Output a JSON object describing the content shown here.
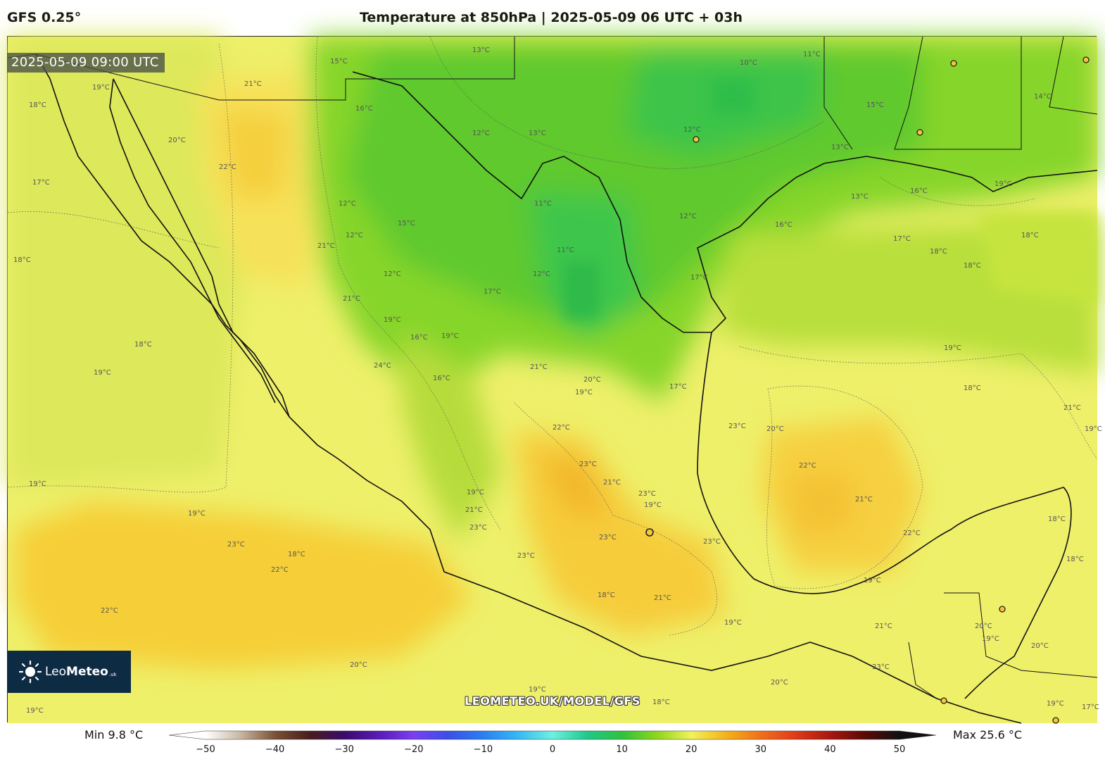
{
  "header": {
    "model": "GFS 0.25°",
    "title": "Temperature at 850hPa | 2025-05-09 06 UTC + 03h"
  },
  "map": {
    "valid_time": "2025-05-09 09:00 UTC",
    "watermark": "LEOMETEO.UK/MODEL/GFS",
    "contour_labels": [
      {
        "id": "c1",
        "text": "15°C"
      },
      {
        "id": "c2",
        "text": "13°C"
      },
      {
        "id": "c3",
        "text": "11°C"
      },
      {
        "id": "c4",
        "text": "10°C"
      },
      {
        "id": "c5",
        "text": "12°C"
      },
      {
        "id": "c6",
        "text": "15°C"
      },
      {
        "id": "c7",
        "text": "13°C"
      },
      {
        "id": "c8",
        "text": "14°C"
      },
      {
        "id": "c9",
        "text": "21°C"
      },
      {
        "id": "c10",
        "text": "16°C"
      },
      {
        "id": "c11",
        "text": "12°C"
      },
      {
        "id": "c12",
        "text": "13°C"
      },
      {
        "id": "c13",
        "text": "22°C"
      },
      {
        "id": "c14",
        "text": "19°C"
      },
      {
        "id": "c15",
        "text": "18°C"
      },
      {
        "id": "c16",
        "text": "20°C"
      },
      {
        "id": "c17",
        "text": "17°C"
      },
      {
        "id": "c18",
        "text": "12°C"
      },
      {
        "id": "c19",
        "text": "12°C"
      },
      {
        "id": "c20",
        "text": "15°C"
      },
      {
        "id": "c21",
        "text": "11°C"
      },
      {
        "id": "c22",
        "text": "11°C"
      },
      {
        "id": "c23",
        "text": "12°C"
      },
      {
        "id": "c24",
        "text": "12°C"
      },
      {
        "id": "c25",
        "text": "13°C"
      },
      {
        "id": "c26",
        "text": "16°C"
      },
      {
        "id": "c27",
        "text": "16°C"
      },
      {
        "id": "c28",
        "text": "17°C"
      },
      {
        "id": "c29",
        "text": "18°C"
      },
      {
        "id": "c30",
        "text": "18°C"
      },
      {
        "id": "c31",
        "text": "18°C"
      },
      {
        "id": "c32",
        "text": "19°C"
      },
      {
        "id": "c33",
        "text": "12°C"
      },
      {
        "id": "c34",
        "text": "17°C"
      },
      {
        "id": "c35",
        "text": "21°C"
      },
      {
        "id": "c36",
        "text": "21°C"
      },
      {
        "id": "c37",
        "text": "17°C"
      },
      {
        "id": "c38",
        "text": "18°C"
      },
      {
        "id": "c39",
        "text": "19°C"
      },
      {
        "id": "c40",
        "text": "19°C"
      },
      {
        "id": "c41",
        "text": "18°C"
      },
      {
        "id": "c42",
        "text": "19°C"
      },
      {
        "id": "c43",
        "text": "16°C"
      },
      {
        "id": "c44",
        "text": "16°C"
      },
      {
        "id": "c45",
        "text": "19°C"
      },
      {
        "id": "c46",
        "text": "21°C"
      },
      {
        "id": "c47",
        "text": "20°C"
      },
      {
        "id": "c48",
        "text": "19°C"
      },
      {
        "id": "c49",
        "text": "17°C"
      },
      {
        "id": "c50",
        "text": "18°C"
      },
      {
        "id": "c51",
        "text": "21°C"
      },
      {
        "id": "c52",
        "text": "20°C"
      },
      {
        "id": "c53",
        "text": "24°C"
      },
      {
        "id": "c54",
        "text": "22°C"
      },
      {
        "id": "c55",
        "text": "23°C"
      },
      {
        "id": "c56",
        "text": "21°C"
      },
      {
        "id": "c57",
        "text": "23°C"
      },
      {
        "id": "c58",
        "text": "19°C"
      },
      {
        "id": "c59",
        "text": "23°C"
      },
      {
        "id": "c60",
        "text": "22°C"
      },
      {
        "id": "c61",
        "text": "21°C"
      },
      {
        "id": "c62",
        "text": "22°C"
      },
      {
        "id": "c63",
        "text": "19°C"
      },
      {
        "id": "c64",
        "text": "18°C"
      },
      {
        "id": "c65",
        "text": "19°C"
      },
      {
        "id": "c66",
        "text": "21°C"
      },
      {
        "id": "c67",
        "text": "23°C"
      },
      {
        "id": "c68",
        "text": "19°C"
      },
      {
        "id": "c69",
        "text": "23°C"
      },
      {
        "id": "c70",
        "text": "23°C"
      },
      {
        "id": "c71",
        "text": "18°C"
      },
      {
        "id": "c72",
        "text": "18°C"
      },
      {
        "id": "c73",
        "text": "21°C"
      },
      {
        "id": "c74",
        "text": "20°C"
      },
      {
        "id": "c75",
        "text": "19°C"
      },
      {
        "id": "c76",
        "text": "23°C"
      },
      {
        "id": "c77",
        "text": "23°C"
      },
      {
        "id": "c78",
        "text": "23°C"
      },
      {
        "id": "c79",
        "text": "22°C"
      },
      {
        "id": "c80",
        "text": "22°C"
      },
      {
        "id": "c81",
        "text": "20°C"
      },
      {
        "id": "c82",
        "text": "19°C"
      },
      {
        "id": "c83",
        "text": "20°C"
      },
      {
        "id": "c84",
        "text": "19°C"
      },
      {
        "id": "c85",
        "text": "18°C"
      },
      {
        "id": "c86",
        "text": "21°C"
      },
      {
        "id": "c87",
        "text": "19°C"
      },
      {
        "id": "c88",
        "text": "19°C"
      },
      {
        "id": "c89",
        "text": "20°C"
      },
      {
        "id": "c90",
        "text": "19°C"
      },
      {
        "id": "c91",
        "text": "17°C"
      },
      {
        "id": "c92",
        "text": "18°C"
      },
      {
        "id": "c93",
        "text": "19°C"
      }
    ]
  },
  "logo": {
    "brand_light": "Leo",
    "brand_bold": "Meteo",
    "suffix": ".uk"
  },
  "colorbar": {
    "min_label": "Min 9.8 °C",
    "max_label": "Max 25.6 °C",
    "ticks": [
      "−50",
      "−40",
      "−30",
      "−20",
      "−10",
      "0",
      "10",
      "20",
      "30",
      "40",
      "50"
    ],
    "range": [
      -50,
      50
    ],
    "stops": [
      {
        "v": -50,
        "c": "#ffffff"
      },
      {
        "v": -45,
        "c": "#c9b8a3"
      },
      {
        "v": -40,
        "c": "#7a5234"
      },
      {
        "v": -35,
        "c": "#4a1c1c"
      },
      {
        "v": -30,
        "c": "#3a0a6b"
      },
      {
        "v": -25,
        "c": "#5a1ab8"
      },
      {
        "v": -20,
        "c": "#7a3ff0"
      },
      {
        "v": -15,
        "c": "#3a4fe8"
      },
      {
        "v": -10,
        "c": "#2a7ff0"
      },
      {
        "v": -5,
        "c": "#35b8f5"
      },
      {
        "v": 0,
        "c": "#6ff0e0"
      },
      {
        "v": 5,
        "c": "#1fc98a"
      },
      {
        "v": 10,
        "c": "#2ec23e"
      },
      {
        "v": 15,
        "c": "#8ed61a"
      },
      {
        "v": 20,
        "c": "#f1f25a"
      },
      {
        "v": 25,
        "c": "#f5b21a"
      },
      {
        "v": 30,
        "c": "#f0701a"
      },
      {
        "v": 35,
        "c": "#e03b1a"
      },
      {
        "v": 40,
        "c": "#a8180f"
      },
      {
        "v": 45,
        "c": "#5a0a06"
      },
      {
        "v": 50,
        "c": "#111111"
      }
    ]
  }
}
